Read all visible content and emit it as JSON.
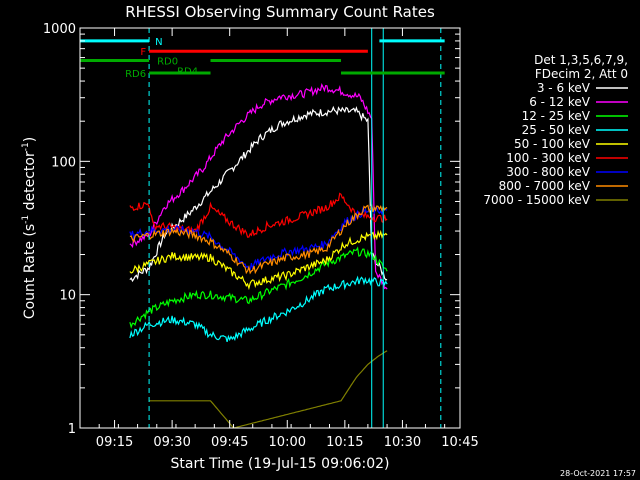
{
  "chart_data": {
    "type": "line",
    "title": "RHESSI Observing Summary Count Rates",
    "xlabel": "Start Time (19-Jul-15 09:06:02)",
    "ylabel_main": "Count Rate (s",
    "ylabel_sup1": "-1",
    "ylabel_mid": " detector",
    "ylabel_sup2": "-1",
    "ylabel_end": ")",
    "timestamp": "28-Oct-2021 17:57",
    "x_range": [
      "09:06",
      "10:45"
    ],
    "y_scale": "log",
    "y_range": [
      1,
      1000
    ],
    "x_ticks": [
      "09:15",
      "09:30",
      "09:45",
      "10:00",
      "10:15",
      "10:30",
      "10:45"
    ],
    "y_ticks": [
      {
        "value": 1,
        "label": "1"
      },
      {
        "value": 10,
        "label": "10"
      },
      {
        "value": 100,
        "label": "100"
      },
      {
        "value": 1000,
        "label": "1000"
      }
    ],
    "legend_header": [
      "Det 1,3,5,6,7,9,",
      "FDecim 2, Att 0"
    ],
    "legend_placement": "right",
    "series": [
      {
        "name": "3 - 6 keV",
        "color": "#ffffff",
        "points": [
          [
            "09:19",
            13
          ],
          [
            "09:24",
            16
          ],
          [
            "09:28",
            28
          ],
          [
            "09:35",
            42
          ],
          [
            "09:42",
            68
          ],
          [
            "09:48",
            105
          ],
          [
            "09:53",
            150
          ],
          [
            "09:58",
            190
          ],
          [
            "10:05",
            225
          ],
          [
            "10:12",
            240
          ],
          [
            "10:18",
            235
          ],
          [
            "10:21",
            200
          ],
          [
            "10:22",
            20
          ],
          [
            "10:24",
            16
          ],
          [
            "10:26",
            13
          ]
        ]
      },
      {
        "name": "6 - 12 keV",
        "color": "#ff00ff",
        "points": [
          [
            "09:19",
            24
          ],
          [
            "09:24",
            28
          ],
          [
            "09:28",
            46
          ],
          [
            "09:33",
            62
          ],
          [
            "09:38",
            88
          ],
          [
            "09:43",
            140
          ],
          [
            "09:48",
            200
          ],
          [
            "09:53",
            265
          ],
          [
            "09:58",
            305
          ],
          [
            "10:04",
            320
          ],
          [
            "10:10",
            360
          ],
          [
            "10:15",
            330
          ],
          [
            "10:19",
            300
          ],
          [
            "10:22",
            210
          ],
          [
            "10:23",
            15
          ],
          [
            "10:26",
            11
          ]
        ]
      },
      {
        "name": "12 - 25 keV",
        "color": "#00ff00",
        "points": [
          [
            "09:19",
            6
          ],
          [
            "09:24",
            7.5
          ],
          [
            "09:30",
            9
          ],
          [
            "09:36",
            10
          ],
          [
            "09:40",
            10
          ],
          [
            "09:45",
            9.5
          ],
          [
            "09:50",
            9
          ],
          [
            "09:55",
            10.5
          ],
          [
            "10:00",
            12
          ],
          [
            "10:05",
            14
          ],
          [
            "10:10",
            17
          ],
          [
            "10:14",
            19
          ],
          [
            "10:18",
            21
          ],
          [
            "10:22",
            20
          ],
          [
            "10:26",
            15
          ]
        ]
      },
      {
        "name": "25 - 50 keV",
        "color": "#00ffff",
        "points": [
          [
            "09:19",
            5
          ],
          [
            "09:24",
            6
          ],
          [
            "09:30",
            6.5
          ],
          [
            "09:36",
            6
          ],
          [
            "09:40",
            5
          ],
          [
            "09:45",
            4.6
          ],
          [
            "09:50",
            5.5
          ],
          [
            "09:55",
            6.5
          ],
          [
            "10:00",
            7.5
          ],
          [
            "10:05",
            9
          ],
          [
            "10:10",
            11
          ],
          [
            "10:15",
            12
          ],
          [
            "10:20",
            13
          ],
          [
            "10:26",
            12
          ]
        ]
      },
      {
        "name": "50 - 100 keV",
        "color": "#ffff00",
        "points": [
          [
            "09:19",
            15
          ],
          [
            "09:24",
            17
          ],
          [
            "09:30",
            19.5
          ],
          [
            "09:36",
            19
          ],
          [
            "09:40",
            19
          ],
          [
            "09:45",
            15
          ],
          [
            "09:50",
            12
          ],
          [
            "09:55",
            13
          ],
          [
            "10:00",
            14
          ],
          [
            "10:05",
            16
          ],
          [
            "10:10",
            18
          ],
          [
            "10:15",
            24
          ],
          [
            "10:20",
            27
          ],
          [
            "10:26",
            28
          ]
        ]
      },
      {
        "name": "100 - 300 keV",
        "color": "#ff0000",
        "points": [
          [
            "09:19",
            45
          ],
          [
            "09:24",
            48
          ],
          [
            "09:25",
            33
          ],
          [
            "09:30",
            32
          ],
          [
            "09:36",
            30
          ],
          [
            "09:40",
            45
          ],
          [
            "09:45",
            35
          ],
          [
            "09:50",
            28
          ],
          [
            "09:55",
            33
          ],
          [
            "10:00",
            36
          ],
          [
            "10:05",
            40
          ],
          [
            "10:10",
            45
          ],
          [
            "10:14",
            55
          ],
          [
            "10:18",
            40
          ],
          [
            "10:22",
            38
          ],
          [
            "10:26",
            37
          ]
        ]
      },
      {
        "name": "300 - 800 keV",
        "color": "#0000ff",
        "points": [
          [
            "09:19",
            28
          ],
          [
            "09:24",
            30
          ],
          [
            "09:30",
            31
          ],
          [
            "09:36",
            30
          ],
          [
            "09:40",
            27
          ],
          [
            "09:45",
            21
          ],
          [
            "09:50",
            16
          ],
          [
            "09:55",
            19
          ],
          [
            "10:00",
            21
          ],
          [
            "10:05",
            22
          ],
          [
            "10:10",
            24
          ],
          [
            "10:15",
            35
          ],
          [
            "10:20",
            42
          ],
          [
            "10:26",
            43
          ]
        ]
      },
      {
        "name": "800 - 7000 keV",
        "color": "#ff8c00",
        "points": [
          [
            "09:19",
            26
          ],
          [
            "09:24",
            28
          ],
          [
            "09:30",
            30
          ],
          [
            "09:36",
            28
          ],
          [
            "09:40",
            25
          ],
          [
            "09:45",
            20
          ],
          [
            "09:50",
            15
          ],
          [
            "09:55",
            17
          ],
          [
            "10:00",
            19
          ],
          [
            "10:05",
            20
          ],
          [
            "10:10",
            22
          ],
          [
            "10:15",
            33
          ],
          [
            "10:20",
            44
          ],
          [
            "10:26",
            45
          ]
        ]
      },
      {
        "name": "7000 - 15000 keV",
        "color": "#808000",
        "points": [
          [
            "09:24",
            1.6
          ],
          [
            "09:30",
            1.6
          ],
          [
            "09:40",
            1.6
          ],
          [
            "09:46",
            1
          ],
          [
            "10:14",
            1.6
          ],
          [
            "10:18",
            2.4
          ],
          [
            "10:21",
            3
          ],
          [
            "10:24",
            3.5
          ],
          [
            "10:26",
            3.8
          ]
        ]
      }
    ],
    "annotations": {
      "bars": [
        {
          "label": "N",
          "color": "#00ffff",
          "value": 800,
          "segments": [
            [
              "09:06",
              "09:24"
            ],
            [
              "10:24",
              "10:41"
            ]
          ]
        },
        {
          "label": "F",
          "color": "#ff0000",
          "value": 670,
          "segments": [
            [
              "09:24",
              "10:21"
            ]
          ]
        },
        {
          "label": "RD0",
          "color": "#00aa00",
          "value": 570,
          "segments": [
            [
              "09:06",
              "09:24"
            ],
            [
              "09:40",
              "10:14"
            ]
          ]
        },
        {
          "label": "RD4",
          "color": "#00aa00",
          "value": 570,
          "segments": []
        },
        {
          "label": "RD6",
          "color": "#00aa00",
          "value": 460,
          "segments": [
            [
              "09:24",
              "09:40"
            ],
            [
              "10:14",
              "10:41"
            ]
          ]
        }
      ],
      "solid_vlines": [
        {
          "time": "09:06",
          "color": "#00ffff"
        },
        {
          "time": "10:22",
          "color": "#00ffff"
        },
        {
          "time": "10:25",
          "color": "#00ffff"
        }
      ],
      "dashed_vlines": [
        {
          "time": "09:24",
          "color": "#00ffff"
        },
        {
          "time": "10:40",
          "color": "#00ffff"
        }
      ]
    }
  }
}
